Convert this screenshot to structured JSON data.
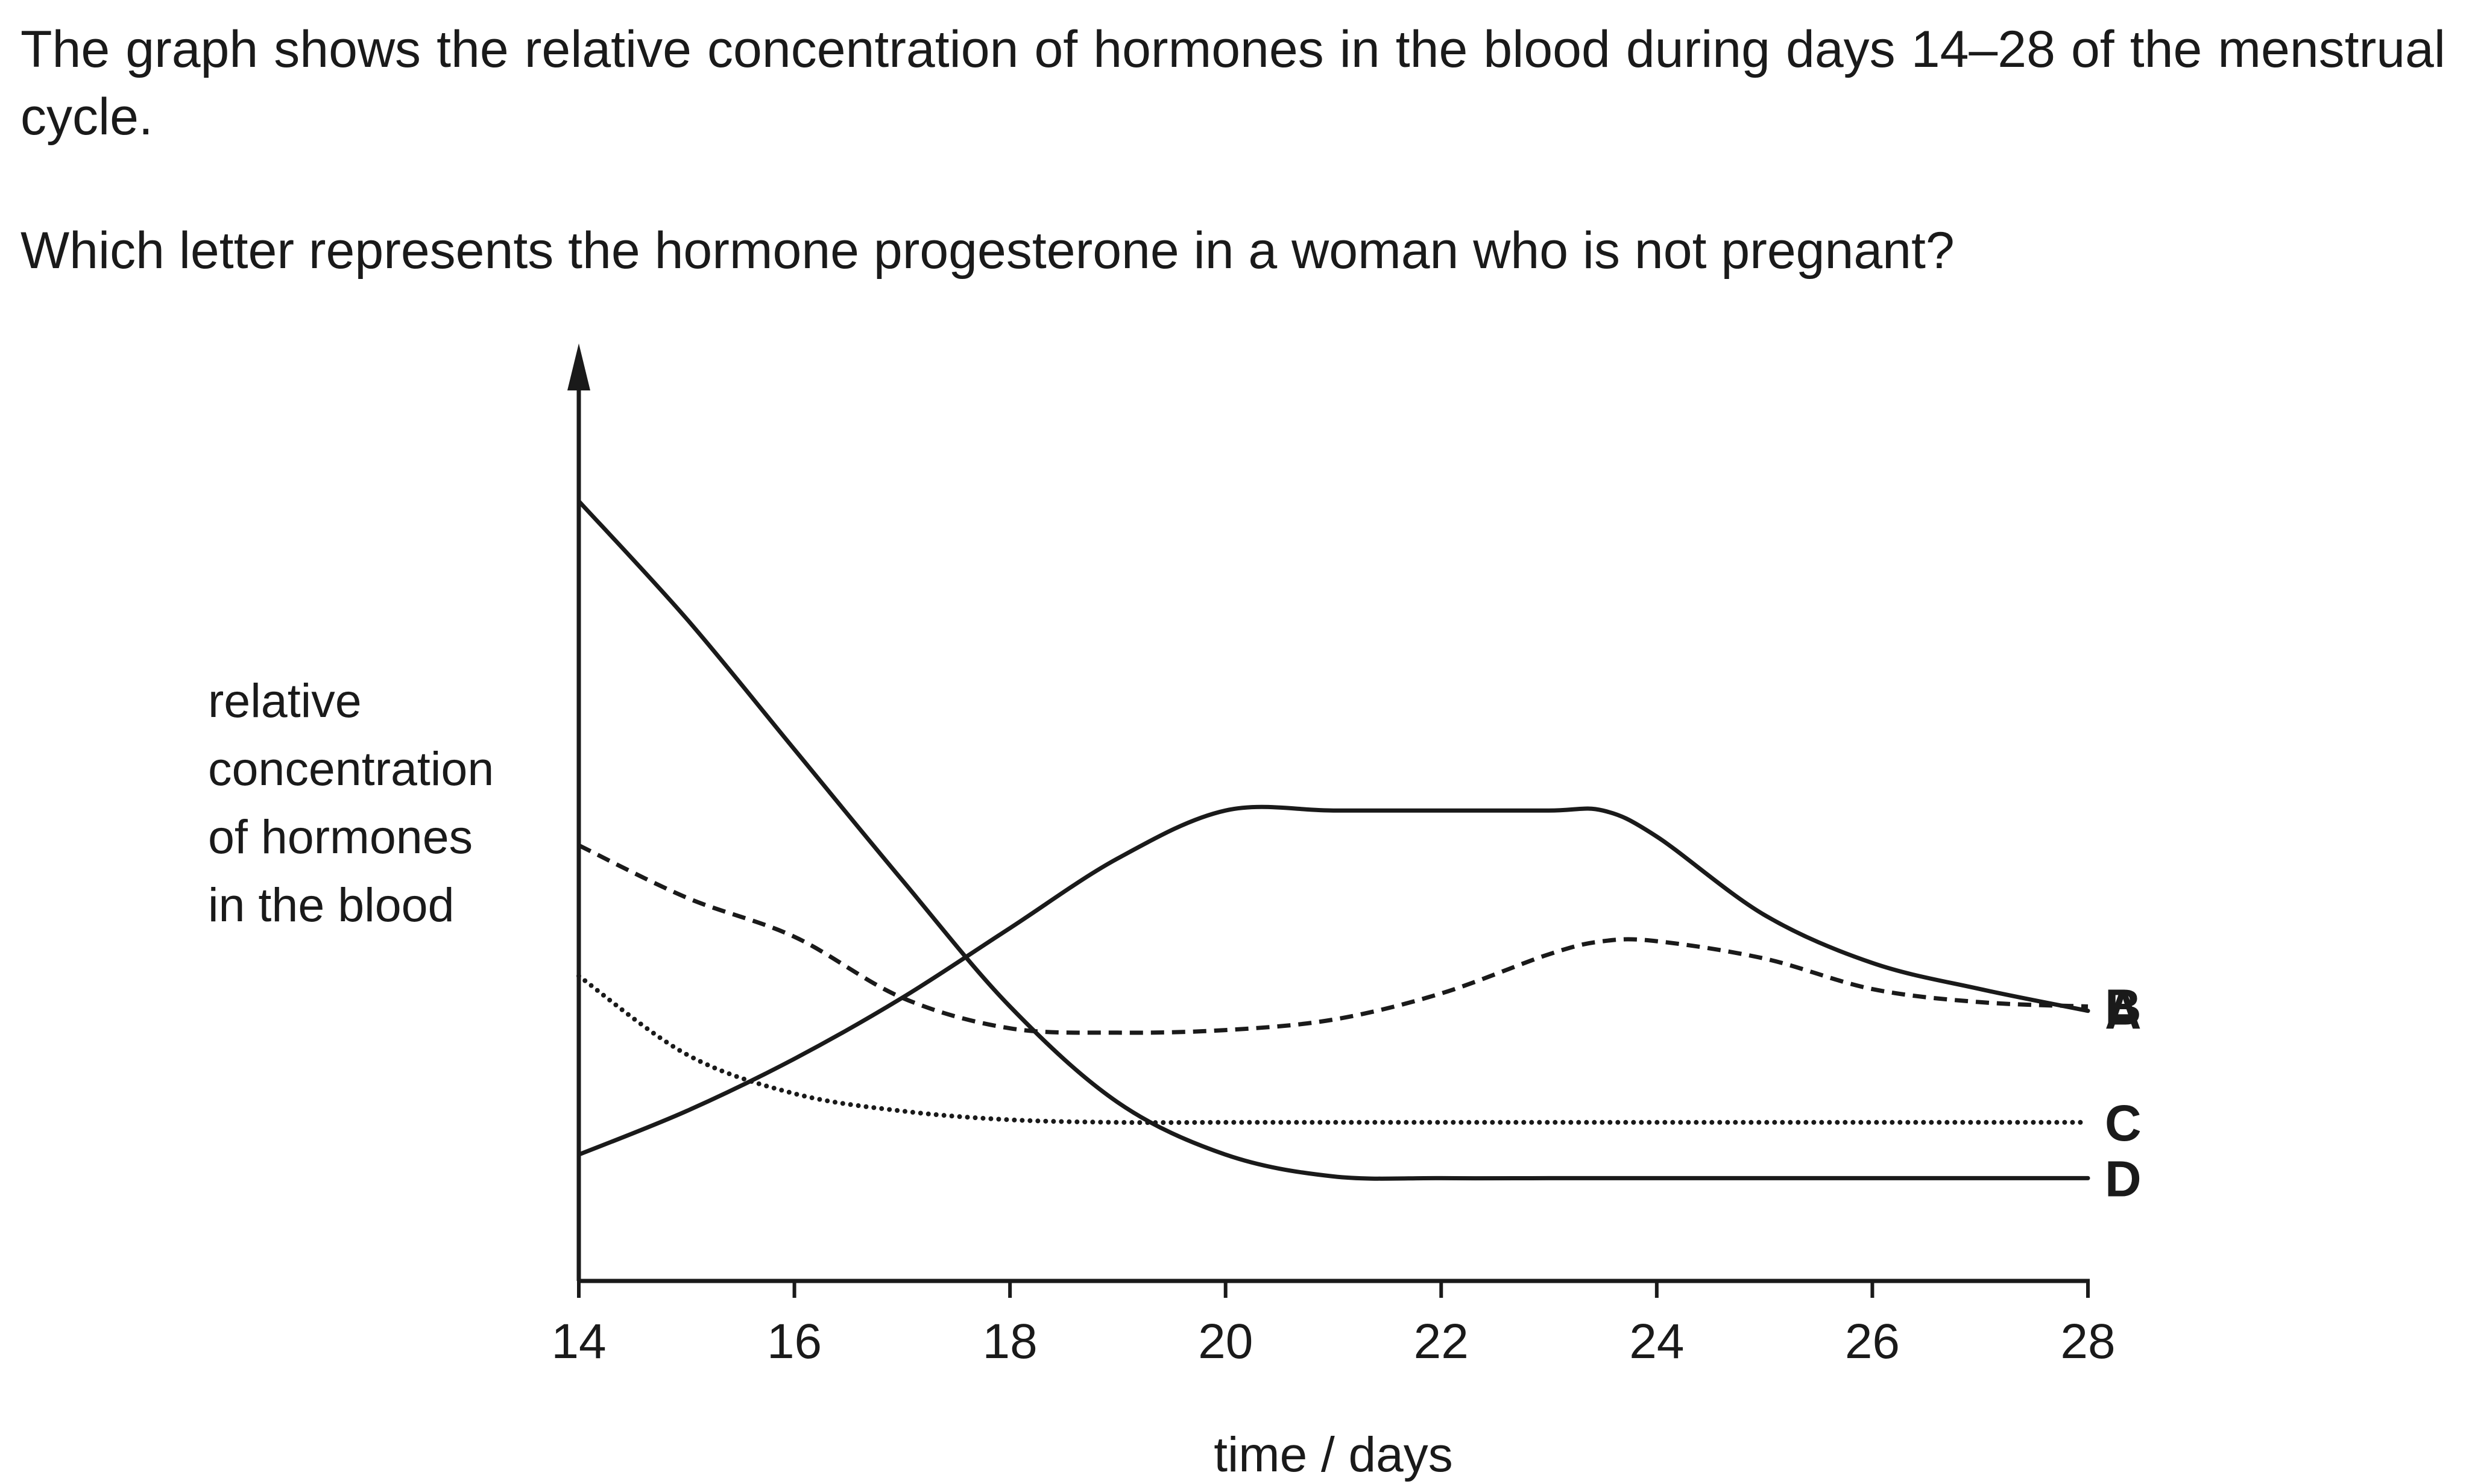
{
  "question": {
    "intro": "The graph shows the relative concentration of hormones in the blood during days 14–28 of the menstrual cycle.",
    "ask": "Which letter represents the hormone progesterone in a woman who is not pregnant?"
  },
  "chart_data": {
    "type": "line",
    "title": "",
    "xlabel": "time / days",
    "ylabel_lines": [
      "relative",
      "concentration",
      "of hormones",
      "in the blood"
    ],
    "xlim": [
      14,
      28
    ],
    "ylim": [
      0,
      10
    ],
    "x_ticks": [
      14,
      16,
      18,
      20,
      22,
      24,
      26,
      28
    ],
    "grid": false,
    "series": [
      {
        "name": "A",
        "style": "solid",
        "x": [
          14,
          15,
          16,
          17,
          18,
          19,
          20,
          21,
          22,
          23,
          23.5,
          24,
          25,
          26,
          27,
          28
        ],
        "y": [
          1.45,
          1.95,
          2.55,
          3.25,
          4.05,
          4.85,
          5.4,
          5.4,
          5.4,
          5.4,
          5.4,
          5.1,
          4.2,
          3.65,
          3.35,
          3.1
        ]
      },
      {
        "name": "B",
        "style": "dashed",
        "x": [
          14,
          15,
          16,
          17,
          18,
          19,
          20,
          21,
          22,
          23,
          23.5,
          24,
          25,
          26,
          27,
          28
        ],
        "y": [
          5.0,
          4.4,
          3.95,
          3.25,
          2.9,
          2.85,
          2.88,
          3.0,
          3.3,
          3.75,
          3.9,
          3.9,
          3.7,
          3.35,
          3.2,
          3.15
        ]
      },
      {
        "name": "C",
        "style": "dotted",
        "x": [
          14,
          15,
          16,
          17,
          18,
          19,
          20,
          21,
          22,
          23,
          24,
          25,
          26,
          27,
          28
        ],
        "y": [
          3.5,
          2.6,
          2.15,
          1.95,
          1.85,
          1.82,
          1.82,
          1.82,
          1.82,
          1.82,
          1.82,
          1.82,
          1.82,
          1.82,
          1.82
        ]
      },
      {
        "name": "D",
        "style": "solid",
        "x": [
          14,
          15,
          16,
          17,
          18,
          19,
          20,
          21,
          22,
          23,
          24,
          25,
          26,
          27,
          28
        ],
        "y": [
          8.95,
          7.6,
          6.1,
          4.6,
          3.15,
          2.05,
          1.45,
          1.2,
          1.18,
          1.18,
          1.18,
          1.18,
          1.18,
          1.18,
          1.18
        ]
      }
    ],
    "colors": {
      "ink": "#1a1a1a"
    }
  }
}
